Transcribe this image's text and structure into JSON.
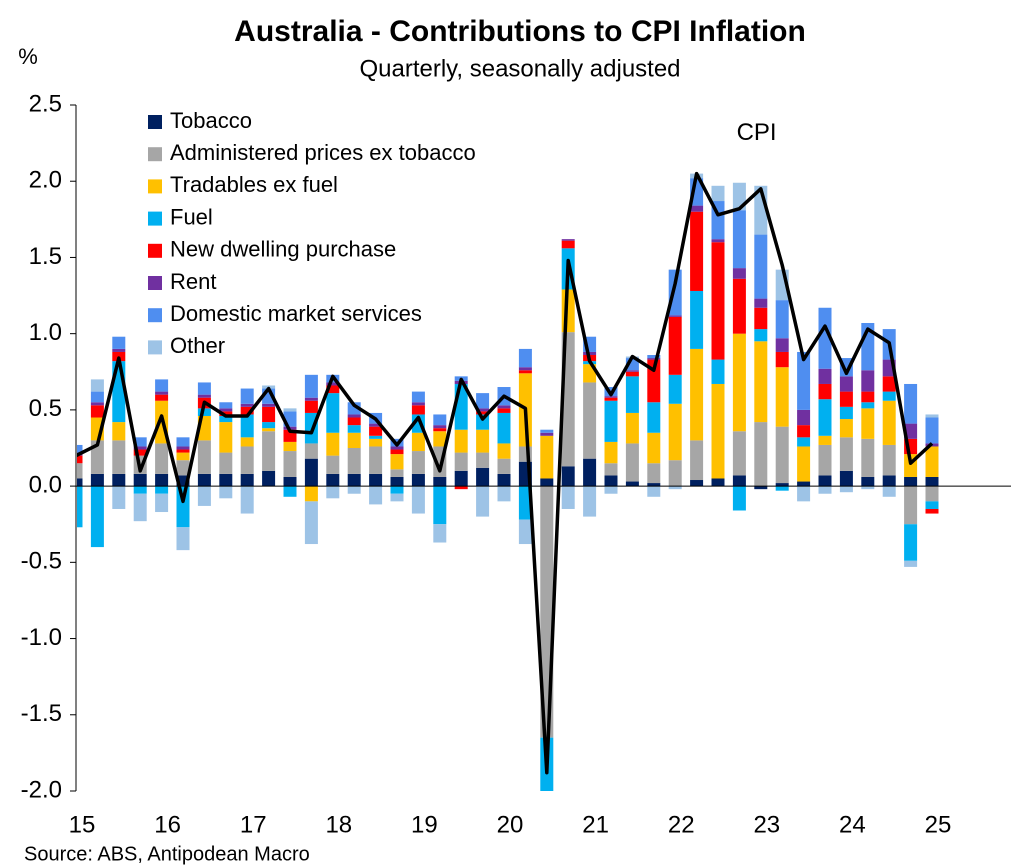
{
  "chart_data": {
    "type": "bar",
    "stacked": true,
    "title": "Australia - Contributions to CPI Inflation",
    "subtitle": "Quarterly, seasonally adjusted",
    "y_label": "%",
    "source": "Source: ABS, Antipodean Macro",
    "categories": [
      "15",
      null,
      null,
      null,
      "16",
      null,
      null,
      null,
      "17",
      null,
      null,
      null,
      "18",
      null,
      null,
      null,
      "19",
      null,
      null,
      null,
      "20",
      null,
      null,
      null,
      "21",
      null,
      null,
      null,
      "22",
      null,
      null,
      null,
      "23",
      null,
      null,
      null,
      "24",
      null,
      null,
      null,
      "25"
    ],
    "ylim": [
      -2.0,
      2.5
    ],
    "yticks": [
      2.5,
      {
        "value": 2,
        "label": "2.0"
      },
      1.5,
      {
        "value": 1,
        "label": "1.0"
      },
      0.5,
      {
        "value": 0,
        "label": "0.0"
      },
      -0.5,
      {
        "value": -1,
        "label": "-1.0"
      },
      -1.5,
      {
        "value": -2,
        "label": "-2.0"
      }
    ],
    "legend": "top-left",
    "series": [
      {
        "name": "Tobacco",
        "color": "#002060",
        "values": [
          0.05,
          0.08,
          0.08,
          0.08,
          0.08,
          0.07,
          0.08,
          0.08,
          0.08,
          0.1,
          0.06,
          0.18,
          0.08,
          0.08,
          0.08,
          0.06,
          0.08,
          0.06,
          0.1,
          0.12,
          0.08,
          0.16,
          0.05,
          0.13,
          0.18,
          0.07,
          0.03,
          0.02,
          0.0,
          0.04,
          0.05,
          0.07,
          -0.02,
          0.02,
          0.03,
          0.07,
          0.1,
          0.06,
          0.07,
          0.06,
          0.06
        ]
      },
      {
        "name": "Administered prices ex tobacco",
        "color": "#a6a6a6",
        "values": [
          0.1,
          0.22,
          0.22,
          0.12,
          0.2,
          0.1,
          0.22,
          0.14,
          0.18,
          0.26,
          0.17,
          0.1,
          0.12,
          0.17,
          0.18,
          0.05,
          0.15,
          0.2,
          0.12,
          0.1,
          0.1,
          0.1,
          -1.65,
          0.88,
          0.5,
          0.08,
          0.25,
          0.13,
          0.17,
          0.26,
          0.0,
          0.29,
          0.42,
          0.37,
          0.0,
          0.2,
          0.22,
          0.25,
          0.2,
          -0.25,
          -0.1
        ]
      },
      {
        "name": "Tradables ex fuel",
        "color": "#ffc000",
        "values": [
          0.0,
          0.15,
          0.12,
          0.0,
          0.28,
          0.05,
          0.16,
          0.2,
          0.06,
          0.02,
          0.06,
          -0.1,
          0.15,
          0.1,
          0.05,
          0.1,
          0.12,
          0.1,
          0.15,
          0.15,
          0.1,
          0.48,
          0.28,
          0.28,
          0.12,
          0.14,
          0.2,
          0.2,
          0.37,
          0.6,
          0.62,
          0.64,
          0.53,
          0.39,
          0.23,
          0.06,
          0.12,
          0.2,
          0.29,
          0.15,
          0.2
        ]
      },
      {
        "name": "Fuel",
        "color": "#00b0f0",
        "values": [
          -0.27,
          -0.4,
          0.4,
          -0.05,
          -0.05,
          -0.27,
          0.05,
          0.04,
          0.15,
          0.04,
          -0.07,
          0.2,
          0.26,
          0.05,
          0.02,
          -0.05,
          0.12,
          -0.25,
          0.3,
          0.1,
          0.2,
          -0.22,
          -0.35,
          0.27,
          0.02,
          0.27,
          0.24,
          0.2,
          0.19,
          0.38,
          0.16,
          -0.16,
          0.08,
          -0.03,
          0.06,
          0.24,
          0.08,
          0.04,
          0.06,
          -0.24,
          -0.05
        ]
      },
      {
        "name": "New dwelling purchase",
        "color": "#ff0000",
        "values": [
          0.05,
          0.08,
          0.06,
          0.04,
          0.04,
          0.02,
          0.07,
          0.03,
          0.05,
          0.1,
          0.08,
          0.08,
          0.05,
          0.05,
          0.06,
          0.03,
          0.06,
          0.02,
          -0.02,
          0.02,
          0.03,
          0.02,
          0.0,
          0.05,
          0.04,
          0.02,
          0.03,
          0.28,
          0.38,
          0.52,
          0.77,
          0.36,
          0.14,
          0.1,
          0.08,
          0.1,
          0.1,
          0.07,
          0.1,
          0.1,
          -0.03
        ]
      },
      {
        "name": "Rent",
        "color": "#7030a0",
        "values": [
          0.02,
          0.02,
          0.02,
          0.02,
          0.02,
          0.02,
          0.02,
          0.02,
          0.02,
          0.02,
          0.02,
          0.02,
          0.02,
          0.02,
          0.02,
          0.02,
          0.02,
          0.02,
          0.02,
          0.02,
          0.02,
          0.02,
          0.02,
          0.01,
          0.02,
          0.01,
          0.01,
          0.01,
          0.01,
          0.04,
          0.02,
          0.07,
          0.06,
          0.09,
          0.1,
          0.1,
          0.1,
          0.14,
          0.11,
          0.1,
          0.02
        ]
      },
      {
        "name": "Domestic market services",
        "color": "#4f8ef0",
        "values": [
          0.05,
          0.07,
          0.08,
          0.06,
          0.08,
          0.06,
          0.08,
          0.04,
          0.1,
          0.1,
          0.1,
          0.15,
          0.05,
          0.08,
          0.07,
          0.05,
          0.07,
          0.07,
          0.03,
          0.1,
          0.12,
          0.12,
          0.02,
          0.0,
          0.1,
          0.06,
          0.08,
          0.02,
          0.3,
          0.18,
          0.25,
          0.38,
          0.42,
          0.25,
          0.38,
          0.4,
          0.12,
          0.31,
          0.2,
          0.26,
          0.17
        ]
      },
      {
        "name": "Other",
        "color": "#9dc3e6",
        "values": [
          0.0,
          0.08,
          -0.15,
          -0.18,
          -0.12,
          -0.15,
          -0.13,
          -0.08,
          -0.18,
          0.02,
          0.02,
          -0.28,
          -0.08,
          -0.05,
          -0.12,
          -0.05,
          -0.18,
          -0.12,
          0.0,
          -0.2,
          -0.1,
          -0.16,
          0.0,
          -0.15,
          -0.2,
          -0.05,
          0.01,
          -0.07,
          -0.02,
          0.03,
          0.1,
          0.18,
          0.32,
          0.2,
          -0.1,
          -0.05,
          -0.04,
          -0.02,
          -0.07,
          -0.04,
          0.02
        ]
      }
    ],
    "line": {
      "name": "CPI",
      "color": "#000000",
      "values": [
        0.2,
        0.27,
        0.84,
        0.1,
        0.46,
        -0.1,
        0.55,
        0.46,
        0.46,
        0.64,
        0.36,
        0.35,
        0.72,
        0.53,
        0.44,
        0.27,
        0.45,
        0.1,
        0.7,
        0.44,
        0.59,
        0.51,
        -1.88,
        1.48,
        0.82,
        0.6,
        0.85,
        0.76,
        1.33,
        2.05,
        1.78,
        1.82,
        1.95,
        1.45,
        0.83,
        1.05,
        0.74,
        1.03,
        0.94,
        0.15,
        0.28
      ]
    }
  }
}
